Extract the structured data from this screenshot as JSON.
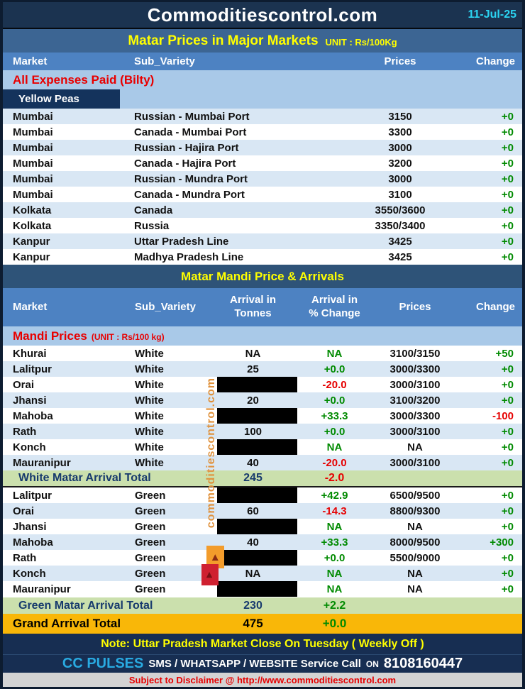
{
  "page": {
    "site_title": "Commoditiescontrol.com",
    "date": "11-Jul-25",
    "watermark_text": "commoditiescontrol.com"
  },
  "major_markets": {
    "title": "Matar Prices in Major Markets",
    "unit": "UNIT : Rs/100Kg",
    "columns": [
      "Market",
      "Sub_Variety",
      "Prices",
      "Change"
    ],
    "section_label": "All Expenses Paid (Bilty)",
    "group_label": "Yellow Peas",
    "rows": [
      {
        "market": "Mumbai",
        "sub": "Russian - Mumbai Port",
        "prices": "3150",
        "change": "+0"
      },
      {
        "market": "Mumbai",
        "sub": "Canada - Mumbai Port",
        "prices": "3300",
        "change": "+0"
      },
      {
        "market": "Mumbai",
        "sub": "Russian - Hajira Port",
        "prices": "3000",
        "change": "+0"
      },
      {
        "market": "Mumbai",
        "sub": "Canada - Hajira Port",
        "prices": "3200",
        "change": "+0"
      },
      {
        "market": "Mumbai",
        "sub": "Russian - Mundra Port",
        "prices": "3000",
        "change": "+0"
      },
      {
        "market": "Mumbai",
        "sub": "Canada - Mundra Port",
        "prices": "3100",
        "change": "+0"
      },
      {
        "market": "Kolkata",
        "sub": "Canada",
        "prices": "3550/3600",
        "change": "+0"
      },
      {
        "market": "Kolkata",
        "sub": "Russia",
        "prices": "3350/3400",
        "change": "+0"
      },
      {
        "market": "Kanpur",
        "sub": "Uttar Pradesh Line",
        "prices": "3425",
        "change": "+0"
      },
      {
        "market": "Kanpur",
        "sub": "Madhya Pradesh Line",
        "prices": "3425",
        "change": "+0"
      }
    ]
  },
  "mandi": {
    "title": "Matar Mandi Price & Arrivals",
    "columns": [
      {
        "l1": "Market",
        "l2": ""
      },
      {
        "l1": "Sub_Variety",
        "l2": ""
      },
      {
        "l1": "Arrival in",
        "l2": "Tonnes"
      },
      {
        "l1": "Arrival  in",
        "l2": "% Change"
      },
      {
        "l1": "Prices",
        "l2": ""
      },
      {
        "l1": "Change",
        "l2": ""
      }
    ],
    "section_label": "Mandi Prices",
    "section_unit": "(UNIT : Rs/100 kg)",
    "white_rows": [
      {
        "market": "Khurai",
        "sub": "White",
        "tonnes": "NA",
        "redacted": false,
        "pct": "NA",
        "prices": "3100/3150",
        "change": "+50"
      },
      {
        "market": "Lalitpur",
        "sub": "White",
        "tonnes": "25",
        "redacted": false,
        "pct": "+0.0",
        "prices": "3000/3300",
        "change": "+0"
      },
      {
        "market": "Orai",
        "sub": "White",
        "tonnes": "",
        "redacted": true,
        "pct": "-20.0",
        "prices": "3000/3100",
        "change": "+0"
      },
      {
        "market": "Jhansi",
        "sub": "White",
        "tonnes": "20",
        "redacted": false,
        "pct": "+0.0",
        "prices": "3100/3200",
        "change": "+0"
      },
      {
        "market": "Mahoba",
        "sub": "White",
        "tonnes": "",
        "redacted": true,
        "pct": "+33.3",
        "prices": "3000/3300",
        "change": "-100"
      },
      {
        "market": "Rath",
        "sub": "White",
        "tonnes": "100",
        "redacted": false,
        "pct": "+0.0",
        "prices": "3000/3100",
        "change": "+0"
      },
      {
        "market": "Konch",
        "sub": "White",
        "tonnes": "",
        "redacted": true,
        "pct": "NA",
        "prices": "NA",
        "change": "+0"
      },
      {
        "market": "Mauranipur",
        "sub": "White",
        "tonnes": "40",
        "redacted": false,
        "pct": "-20.0",
        "prices": "3000/3100",
        "change": "+0"
      }
    ],
    "white_total": {
      "label": "White Matar Arrival Total",
      "tonnes": "245",
      "pct": "-2.0"
    },
    "green_rows": [
      {
        "market": "Lalitpur",
        "sub": "Green",
        "tonnes": "",
        "redacted": true,
        "pct": "+42.9",
        "prices": "6500/9500",
        "change": "+0"
      },
      {
        "market": "Orai",
        "sub": "Green",
        "tonnes": "60",
        "redacted": false,
        "pct": "-14.3",
        "prices": "8800/9300",
        "change": "+0"
      },
      {
        "market": "Jhansi",
        "sub": "Green",
        "tonnes": "",
        "redacted": true,
        "pct": "NA",
        "prices": "NA",
        "change": "+0"
      },
      {
        "market": "Mahoba",
        "sub": "Green",
        "tonnes": "40",
        "redacted": false,
        "pct": "+33.3",
        "prices": "8000/9500",
        "change": "+300"
      },
      {
        "market": "Rath",
        "sub": "Green",
        "tonnes": "",
        "redacted": true,
        "pct": "+0.0",
        "prices": "5500/9000",
        "change": "+0"
      },
      {
        "market": "Konch",
        "sub": "Green",
        "tonnes": "NA",
        "redacted": false,
        "pct": "NA",
        "prices": "NA",
        "change": "+0"
      },
      {
        "market": "Mauranipur",
        "sub": "Green",
        "tonnes": "",
        "redacted": true,
        "pct": "NA",
        "prices": "NA",
        "change": "+0"
      }
    ],
    "green_total": {
      "label": "Green Matar Arrival Total",
      "tonnes": "230",
      "pct": "+2.2"
    },
    "grand_total": {
      "label": "Grand Arrival Total",
      "tonnes": "475",
      "pct": "+0.0"
    }
  },
  "footer": {
    "note": "Note: Uttar Pradesh Market Close On Tuesday ( Weekly Off )",
    "cc_brand": "CC PULSES",
    "cc_services": "SMS / WHATSAPP / WEBSITE Service Call",
    "cc_on": "ON",
    "cc_phone": "8108160447",
    "disclaimer": "Subject to Disclaimer @  http://www.commoditiescontrol.com"
  },
  "colors": {
    "positive": "#008a00",
    "negative": "#e60000",
    "date_accent": "#2bd4f2",
    "brand_accent": "#29aae1",
    "grand_total_bg": "#f9b708",
    "total_bg": "#cbe0ad",
    "watermark_orange": "#e0923d"
  }
}
